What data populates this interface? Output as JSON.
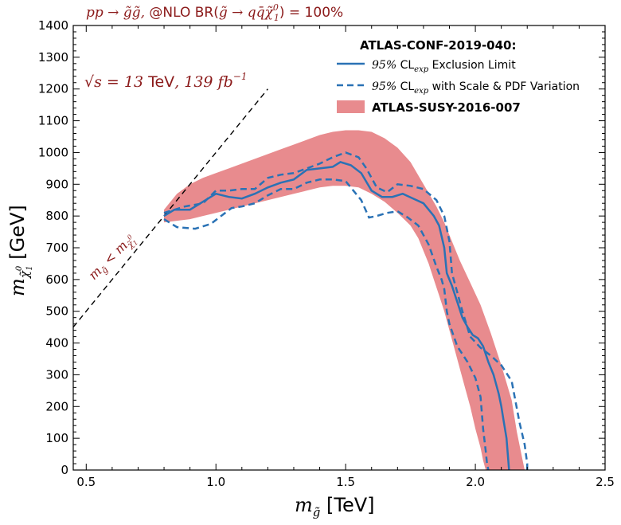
{
  "chart_data": {
    "type": "line",
    "title": {
      "process": "pp → g̃g̃, ",
      "nlo": "@NLO BR(",
      "decay": "g̃ → qq̄χ̃",
      "sup": "0",
      "sub": "1",
      "close": ") = 100%"
    },
    "energy_label": {
      "sqrt": "√",
      "s": "s",
      "eq": " = 13 ",
      "tev": "TeV",
      "lumi": ", 139 fb",
      "exp": "−1"
    },
    "xlabel": {
      "math": "m",
      "sub": "g̃",
      "unit": " [TeV]"
    },
    "ylabel": {
      "math": "m",
      "sub": "χ̃",
      "supsub0": "0",
      "subsub1": "1",
      "unit": " [GeV]"
    },
    "kinematic_label": {
      "m": "m",
      "g": "g̃",
      "lt": " < m",
      "chi": "χ̃",
      "zero": "0",
      "one": "1"
    },
    "xlim": [
      0.45,
      2.5
    ],
    "ylim": [
      0,
      1400
    ],
    "xticks": [
      "0.5",
      "1.0",
      "1.5",
      "2.0",
      "2.5"
    ],
    "yticks": [
      "0",
      "100",
      "200",
      "300",
      "400",
      "500",
      "600",
      "700",
      "800",
      "900",
      "1000",
      "1100",
      "1200",
      "1300",
      "1400"
    ],
    "xtick_values": [
      0.5,
      1.0,
      1.5,
      2.0,
      2.5
    ],
    "ytick_values": [
      0,
      100,
      200,
      300,
      400,
      500,
      600,
      700,
      800,
      900,
      1000,
      1100,
      1200,
      1300,
      1400
    ],
    "legend": {
      "header": "ATLAS-CONF-2019-040:",
      "solid_label": {
        "pct": "95%",
        "cl": " CL",
        "sub": "exp",
        "rest": " Exclusion Limit"
      },
      "dashed_label": {
        "pct": "95%",
        "cl": " CL",
        "sub": "exp",
        "rest": " with Scale & PDF Variation"
      },
      "band_label": "ATLAS-SUSY-2016-007"
    },
    "colors": {
      "solid": "#2a72b5",
      "dashed": "#2a72b5",
      "band": "#e88b8e",
      "title": "#8b1a1a",
      "kinematic": "#000000"
    },
    "kinematic_line": {
      "x": [
        0.45,
        1.2
      ],
      "y": [
        450,
        1200
      ]
    },
    "series": [
      {
        "name": "95% CLexp Exclusion Limit",
        "style": "solid",
        "x": [
          0.8,
          0.84,
          0.9,
          0.95,
          1.0,
          1.05,
          1.1,
          1.15,
          1.2,
          1.25,
          1.3,
          1.35,
          1.4,
          1.45,
          1.48,
          1.52,
          1.56,
          1.6,
          1.64,
          1.68,
          1.72,
          1.76,
          1.8,
          1.84,
          1.86,
          1.88,
          1.89,
          1.91,
          1.93,
          1.95,
          1.97,
          1.99,
          2.01,
          2.03,
          2.05,
          2.07,
          2.09,
          2.1,
          2.11,
          2.12,
          2.125,
          2.13
        ],
        "y": [
          800,
          820,
          820,
          845,
          870,
          860,
          855,
          870,
          890,
          905,
          915,
          945,
          950,
          955,
          970,
          960,
          935,
          880,
          860,
          860,
          870,
          855,
          840,
          800,
          770,
          700,
          620,
          580,
          530,
          480,
          450,
          425,
          415,
          390,
          340,
          300,
          240,
          200,
          150,
          100,
          50,
          0
        ]
      },
      {
        "name": "95% CLexp with Scale & PDF Variation (upper)",
        "style": "dashed",
        "x": [
          0.8,
          0.88,
          0.95,
          1.0,
          1.05,
          1.1,
          1.15,
          1.2,
          1.25,
          1.3,
          1.35,
          1.4,
          1.45,
          1.5,
          1.55,
          1.58,
          1.62,
          1.66,
          1.7,
          1.75,
          1.8,
          1.85,
          1.88,
          1.9,
          1.91,
          1.93,
          1.95,
          1.98,
          2.02,
          2.06,
          2.1,
          2.14,
          2.17,
          2.19,
          2.2,
          2.2,
          2.2
        ],
        "y": [
          810,
          830,
          840,
          880,
          880,
          885,
          885,
          920,
          930,
          935,
          950,
          965,
          985,
          1000,
          985,
          950,
          890,
          875,
          900,
          895,
          885,
          850,
          800,
          720,
          620,
          560,
          500,
          420,
          385,
          360,
          330,
          280,
          150,
          80,
          20,
          0,
          0
        ]
      },
      {
        "name": "95% CLexp with Scale & PDF Variation (lower)",
        "style": "dashed",
        "x": [
          0.8,
          0.85,
          0.92,
          0.98,
          1.02,
          1.06,
          1.1,
          1.15,
          1.2,
          1.25,
          1.3,
          1.35,
          1.4,
          1.45,
          1.5,
          1.53,
          1.56,
          1.59,
          1.62,
          1.66,
          1.7,
          1.74,
          1.78,
          1.82,
          1.85,
          1.87,
          1.88,
          1.89,
          1.9,
          1.93,
          1.97,
          2.0,
          2.02,
          2.03,
          2.04,
          2.045,
          2.05
        ],
        "y": [
          790,
          765,
          760,
          775,
          800,
          825,
          830,
          840,
          865,
          885,
          885,
          905,
          915,
          915,
          910,
          880,
          850,
          795,
          800,
          810,
          815,
          795,
          770,
          710,
          640,
          600,
          570,
          500,
          460,
          390,
          340,
          290,
          230,
          130,
          60,
          20,
          0
        ]
      }
    ],
    "band": {
      "name": "ATLAS-SUSY-2016-007",
      "upper": {
        "x": [
          0.8,
          0.85,
          0.9,
          0.95,
          1.0,
          1.05,
          1.1,
          1.15,
          1.2,
          1.25,
          1.3,
          1.35,
          1.4,
          1.45,
          1.5,
          1.55,
          1.6,
          1.65,
          1.7,
          1.75,
          1.8,
          1.85,
          1.88,
          1.91,
          1.94,
          1.98,
          2.02,
          2.06,
          2.1,
          2.14,
          2.16,
          2.18,
          2.19
        ],
        "y": [
          820,
          870,
          900,
          920,
          935,
          950,
          965,
          980,
          995,
          1010,
          1025,
          1040,
          1055,
          1065,
          1070,
          1070,
          1065,
          1045,
          1015,
          970,
          900,
          830,
          780,
          720,
          660,
          590,
          520,
          430,
          330,
          220,
          120,
          40,
          0
        ]
      },
      "lower": {
        "x": [
          0.8,
          0.85,
          0.9,
          0.95,
          1.0,
          1.05,
          1.1,
          1.15,
          1.2,
          1.25,
          1.3,
          1.35,
          1.4,
          1.45,
          1.5,
          1.55,
          1.6,
          1.65,
          1.7,
          1.75,
          1.78,
          1.8,
          1.82,
          1.84,
          1.86,
          1.88,
          1.9,
          1.92,
          1.94,
          1.96,
          1.98,
          2.0,
          2.02,
          2.03,
          2.04
        ],
        "y": [
          780,
          785,
          790,
          800,
          810,
          820,
          830,
          840,
          850,
          860,
          870,
          880,
          890,
          895,
          895,
          890,
          870,
          845,
          810,
          770,
          730,
          690,
          650,
          600,
          550,
          500,
          440,
          380,
          320,
          260,
          200,
          130,
          70,
          30,
          0
        ]
      }
    }
  }
}
